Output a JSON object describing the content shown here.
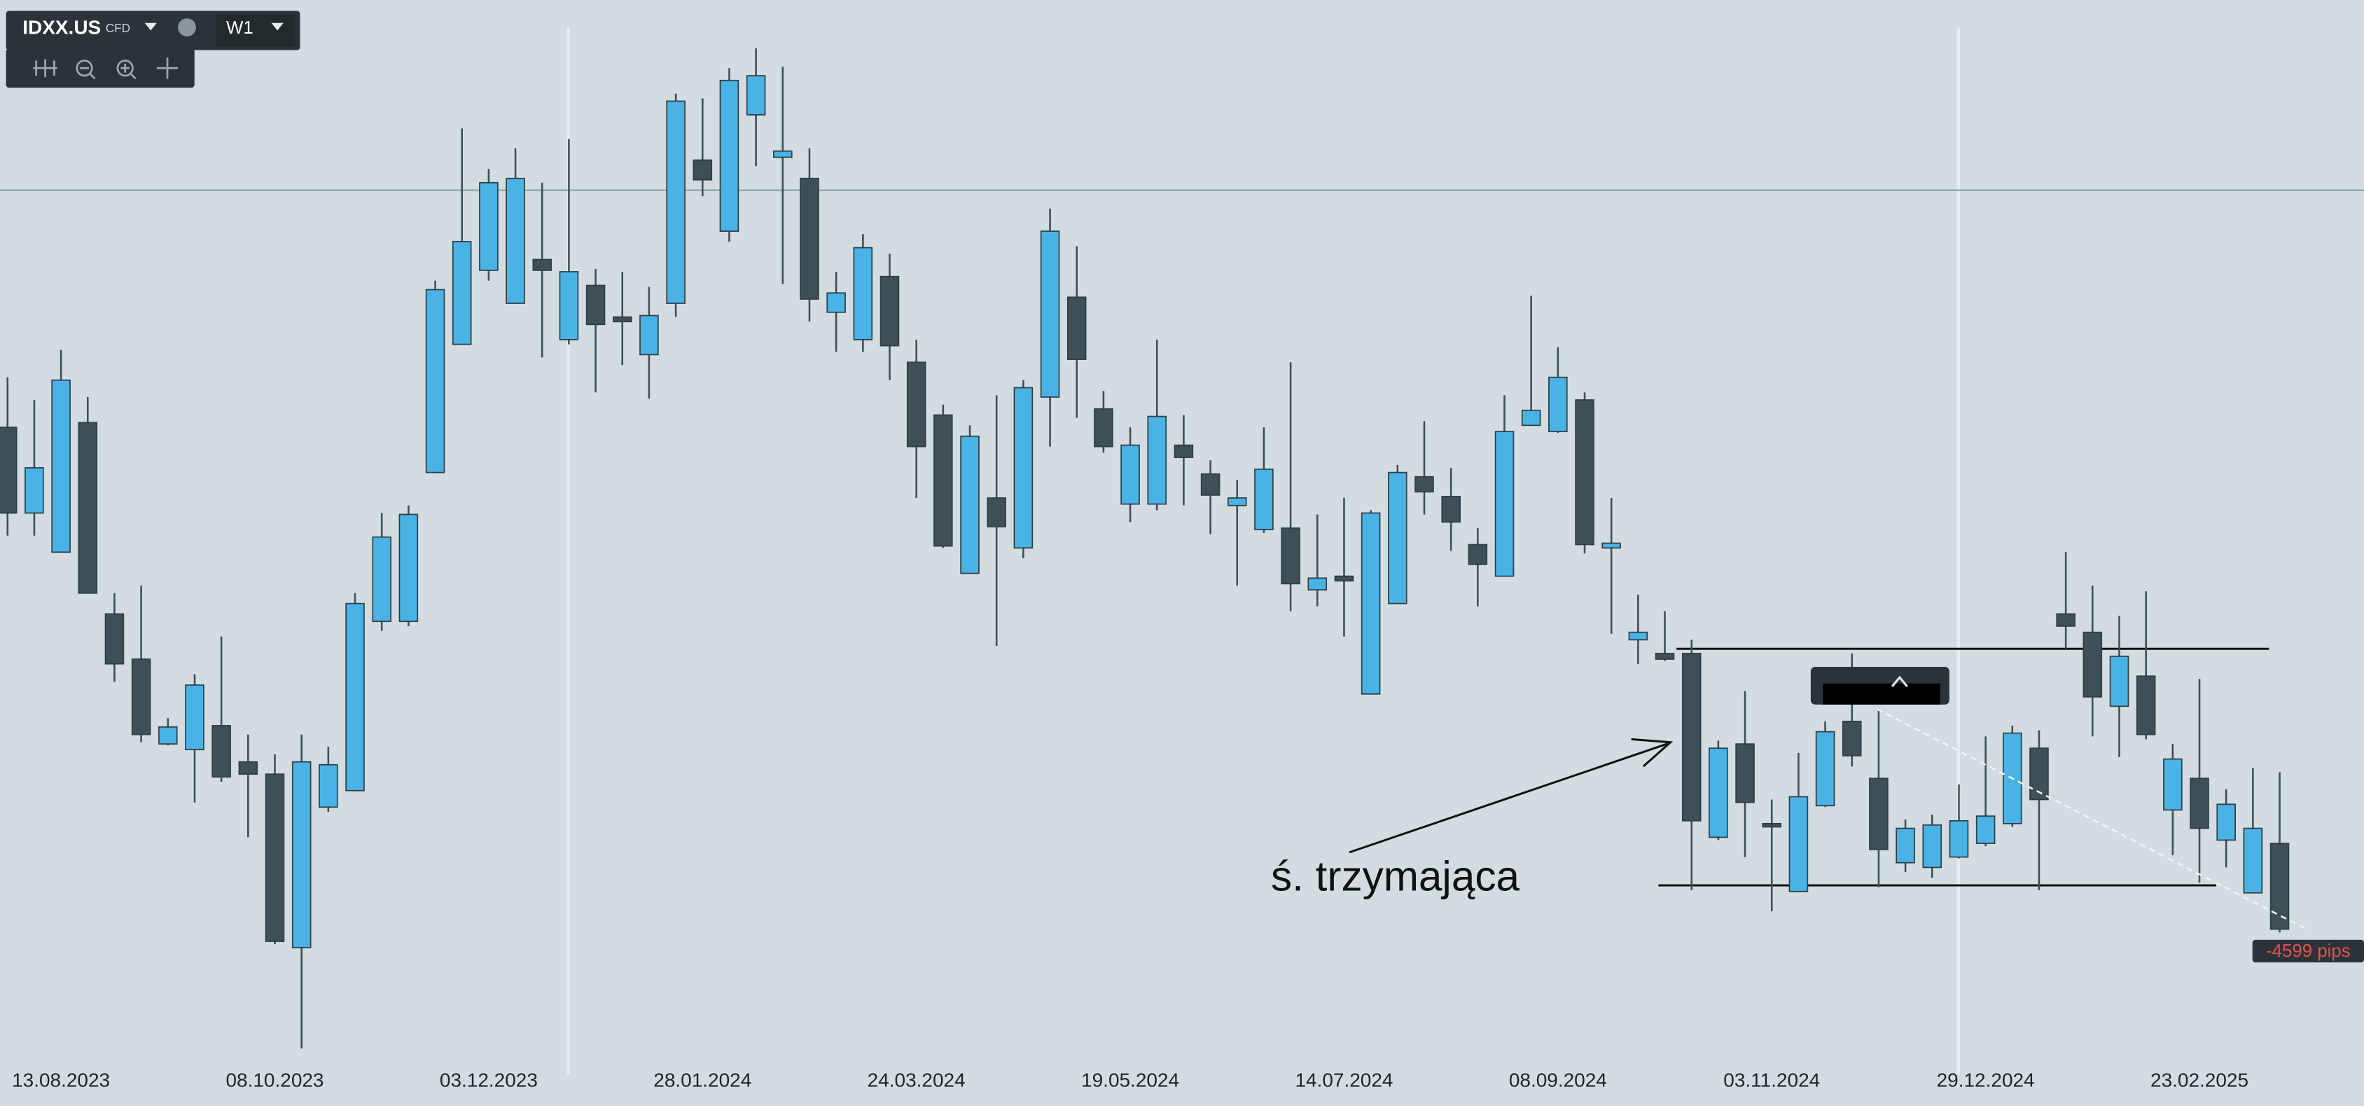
{
  "toolbar": {
    "symbol": "IDXX.US",
    "instrument": "CFD",
    "timeframe": "W1"
  },
  "chart_data": {
    "type": "candlestick",
    "categories": [
      null,
      null,
      "13.08.2023",
      null,
      null,
      null,
      null,
      null,
      null,
      null,
      "08.10.2023",
      null,
      null,
      null,
      null,
      null,
      null,
      null,
      "03.12.2023",
      null,
      null,
      null,
      null,
      null,
      null,
      null,
      "28.01.2024",
      null,
      null,
      null,
      null,
      null,
      null,
      null,
      "24.03.2024",
      null,
      null,
      null,
      null,
      null,
      null,
      null,
      "19.05.2024",
      null,
      null,
      null,
      null,
      null,
      null,
      null,
      "14.07.2024",
      null,
      null,
      null,
      null,
      null,
      null,
      null,
      "08.09.2024",
      null,
      null,
      null,
      null,
      null,
      null,
      null,
      "03.11.2024",
      null,
      null,
      null,
      null,
      null,
      null,
      null,
      "29.12.2024",
      null,
      null,
      null,
      null,
      null,
      null,
      null,
      "23.02.2025",
      null,
      null,
      null
    ],
    "open": [
      502.4,
      484.2,
      475.9,
      503.4,
      462.8,
      453.2,
      435.2,
      434,
      439.1,
      431.4,
      428.8,
      392,
      421.8,
      425.3,
      461.2,
      461.2,
      492.8,
      520,
      535.7,
      528.7,
      538,
      521,
      532.5,
      525.8,
      517.8,
      528.7,
      559.1,
      544,
      568.7,
      559.7,
      555.2,
      526.8,
      521,
      534.4,
      516.2,
      505,
      471.4,
      487.4,
      476.8,
      508.8,
      530,
      506.3,
      486.1,
      486.1,
      498.6,
      492.5,
      485.8,
      480.7,
      481,
      467.9,
      470.8,
      445.8,
      465,
      491.9,
      487.7,
      477.5,
      470.8,
      502.8,
      501.5,
      508.2,
      476.8,
      457.3,
      454.4,
      454.4,
      415.4,
      435.2,
      418.3,
      403.9,
      422.1,
      440,
      427.9,
      410,
      409,
      411.2,
      414.1,
      418.3,
      434.3,
      462.8,
      458.9,
      443.2,
      449.6,
      421.2,
      427.9,
      414.8,
      403.6,
      414.1
    ],
    "high": [
      513,
      508.2,
      518.8,
      508.8,
      467.2,
      468.8,
      440.7,
      450,
      458,
      437.2,
      433,
      437.2,
      434.6,
      467.2,
      484.2,
      485.8,
      533.5,
      565.8,
      557.2,
      561.6,
      554.3,
      563.6,
      536,
      535.4,
      532.2,
      573.2,
      572.2,
      578.6,
      582.8,
      578.9,
      561.6,
      535.4,
      543.4,
      539.2,
      521,
      507.2,
      502.8,
      509.2,
      512.4,
      548.8,
      540.8,
      510.1,
      502.4,
      521,
      505,
      495.4,
      491.2,
      502.4,
      516.2,
      483.9,
      487.4,
      484.8,
      494.4,
      503.7,
      493.8,
      481,
      509.2,
      530.3,
      519.4,
      509.8,
      487.4,
      466.9,
      463.4,
      457.3,
      435.9,
      446.4,
      423.4,
      433.3,
      440,
      454.4,
      442.6,
      419.2,
      420.2,
      426.6,
      436.8,
      439.1,
      438.1,
      475.9,
      468.8,
      462.4,
      467.6,
      435.2,
      449,
      425.6,
      430.1,
      429.2
    ],
    "low": [
      479.4,
      479.4,
      475.9,
      467.2,
      448.4,
      435.6,
      434.9,
      422.8,
      427.2,
      415.4,
      392.7,
      370.6,
      420.8,
      425.3,
      459.2,
      460.2,
      492.8,
      520,
      533.5,
      528.7,
      517.2,
      520,
      509.8,
      515.6,
      508.5,
      525.8,
      551.4,
      541.8,
      557.8,
      532.8,
      524.8,
      518.4,
      518.4,
      512.4,
      487.4,
      476.8,
      471.4,
      456,
      474.6,
      498.3,
      504.4,
      497,
      482.3,
      484.8,
      485.8,
      479.7,
      468.8,
      480,
      463.4,
      464.4,
      458,
      445.8,
      465,
      483.9,
      476.2,
      464.4,
      470.8,
      502.8,
      501.2,
      475.6,
      458.6,
      452.2,
      452.8,
      404.2,
      414.8,
      411.2,
      399.7,
      403.9,
      421.8,
      430.4,
      404.8,
      408,
      406.8,
      410.9,
      413.5,
      417.6,
      404.2,
      455.4,
      436.8,
      432.4,
      436.2,
      411.6,
      405.8,
      409,
      403.6,
      395.2
    ],
    "close": [
      484.2,
      493.8,
      512.4,
      467.2,
      452.2,
      437.2,
      438.8,
      447.7,
      428.2,
      428.8,
      393.3,
      431.4,
      430.8,
      465,
      479.1,
      483.9,
      531.6,
      541.8,
      554.3,
      555.2,
      535.7,
      535.4,
      524.2,
      524.8,
      526.1,
      571.6,
      554.9,
      576,
      577,
      561,
      529.6,
      530.9,
      540.5,
      519.7,
      498.3,
      477.2,
      500.5,
      481.3,
      510.8,
      544,
      516.8,
      498.3,
      498.6,
      504.7,
      496,
      488,
      487.4,
      493.5,
      469.2,
      470.4,
      469.8,
      484.2,
      492.8,
      488.7,
      482.3,
      473.3,
      501.5,
      506,
      513,
      477.5,
      477.8,
      458.9,
      453.2,
      418.9,
      434.3,
      422.8,
      417.6,
      424,
      437.8,
      432.7,
      412.8,
      417.3,
      418,
      418.9,
      419.9,
      437.5,
      423.4,
      460.2,
      445.2,
      453.8,
      437.2,
      432,
      417.3,
      422.4,
      417.3,
      395.9
    ],
    "up_color": "#4ab3e6",
    "down_color": "#3e4f57",
    "ylim": [
      367.4,
      593
    ],
    "hlines": [
      552.7,
      455.4,
      405.2
    ],
    "annotation": "ś. trzymająca",
    "measure_label": "-4599 pips"
  }
}
